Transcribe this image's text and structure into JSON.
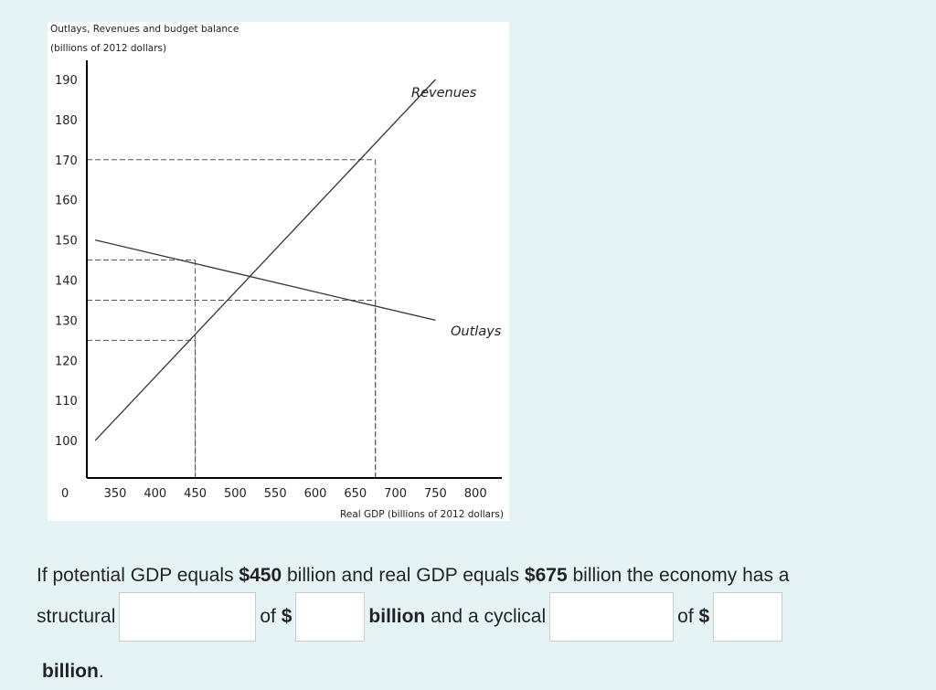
{
  "chart_data": {
    "type": "line",
    "title_line1": "Outlays, Revenues and budget balance",
    "title_line2": "(billions of 2012 dollars)",
    "xlabel": "Real GDP (billions of 2012 dollars)",
    "ylabel": "",
    "x_tick_labels": [
      "350",
      "400",
      "450",
      "500",
      "550",
      "600",
      "650",
      "700",
      "750",
      "800"
    ],
    "y_tick_labels": [
      "190",
      "180",
      "170",
      "160",
      "150",
      "140",
      "130",
      "120",
      "110",
      "100"
    ],
    "origin_label": "0",
    "xlim": [
      300,
      800
    ],
    "ylim": [
      100,
      190
    ],
    "series": [
      {
        "name": "Revenues",
        "x": [
          325,
          750
        ],
        "y": [
          100,
          190
        ]
      },
      {
        "name": "Outlays",
        "x": [
          325,
          750
        ],
        "y": [
          150,
          130
        ]
      }
    ],
    "reference_lines": [
      {
        "x": 450,
        "y": 145
      },
      {
        "x": 450,
        "y": 125
      },
      {
        "x": 675,
        "y": 170
      },
      {
        "x": 675,
        "y": 135
      }
    ],
    "grid": false,
    "legend": "none"
  },
  "question": {
    "line1_a": "If potential GDP equals ",
    "line1_b": "$450",
    "line1_c": " billion and real GDP equals ",
    "line1_d": "$675",
    "line1_e": " billion the economy has a",
    "structural": "structural",
    "of_1": "of ",
    "dollar_1": "$",
    "billion_mid": "billion",
    "and_cyclical": " and a cyclical",
    "of_2": "of ",
    "dollar_2": "$",
    "billion_end": "billion",
    "period": "."
  },
  "answers": {
    "structural_type": "",
    "structural_amount": "",
    "cyclical_type": "",
    "cyclical_amount": ""
  }
}
